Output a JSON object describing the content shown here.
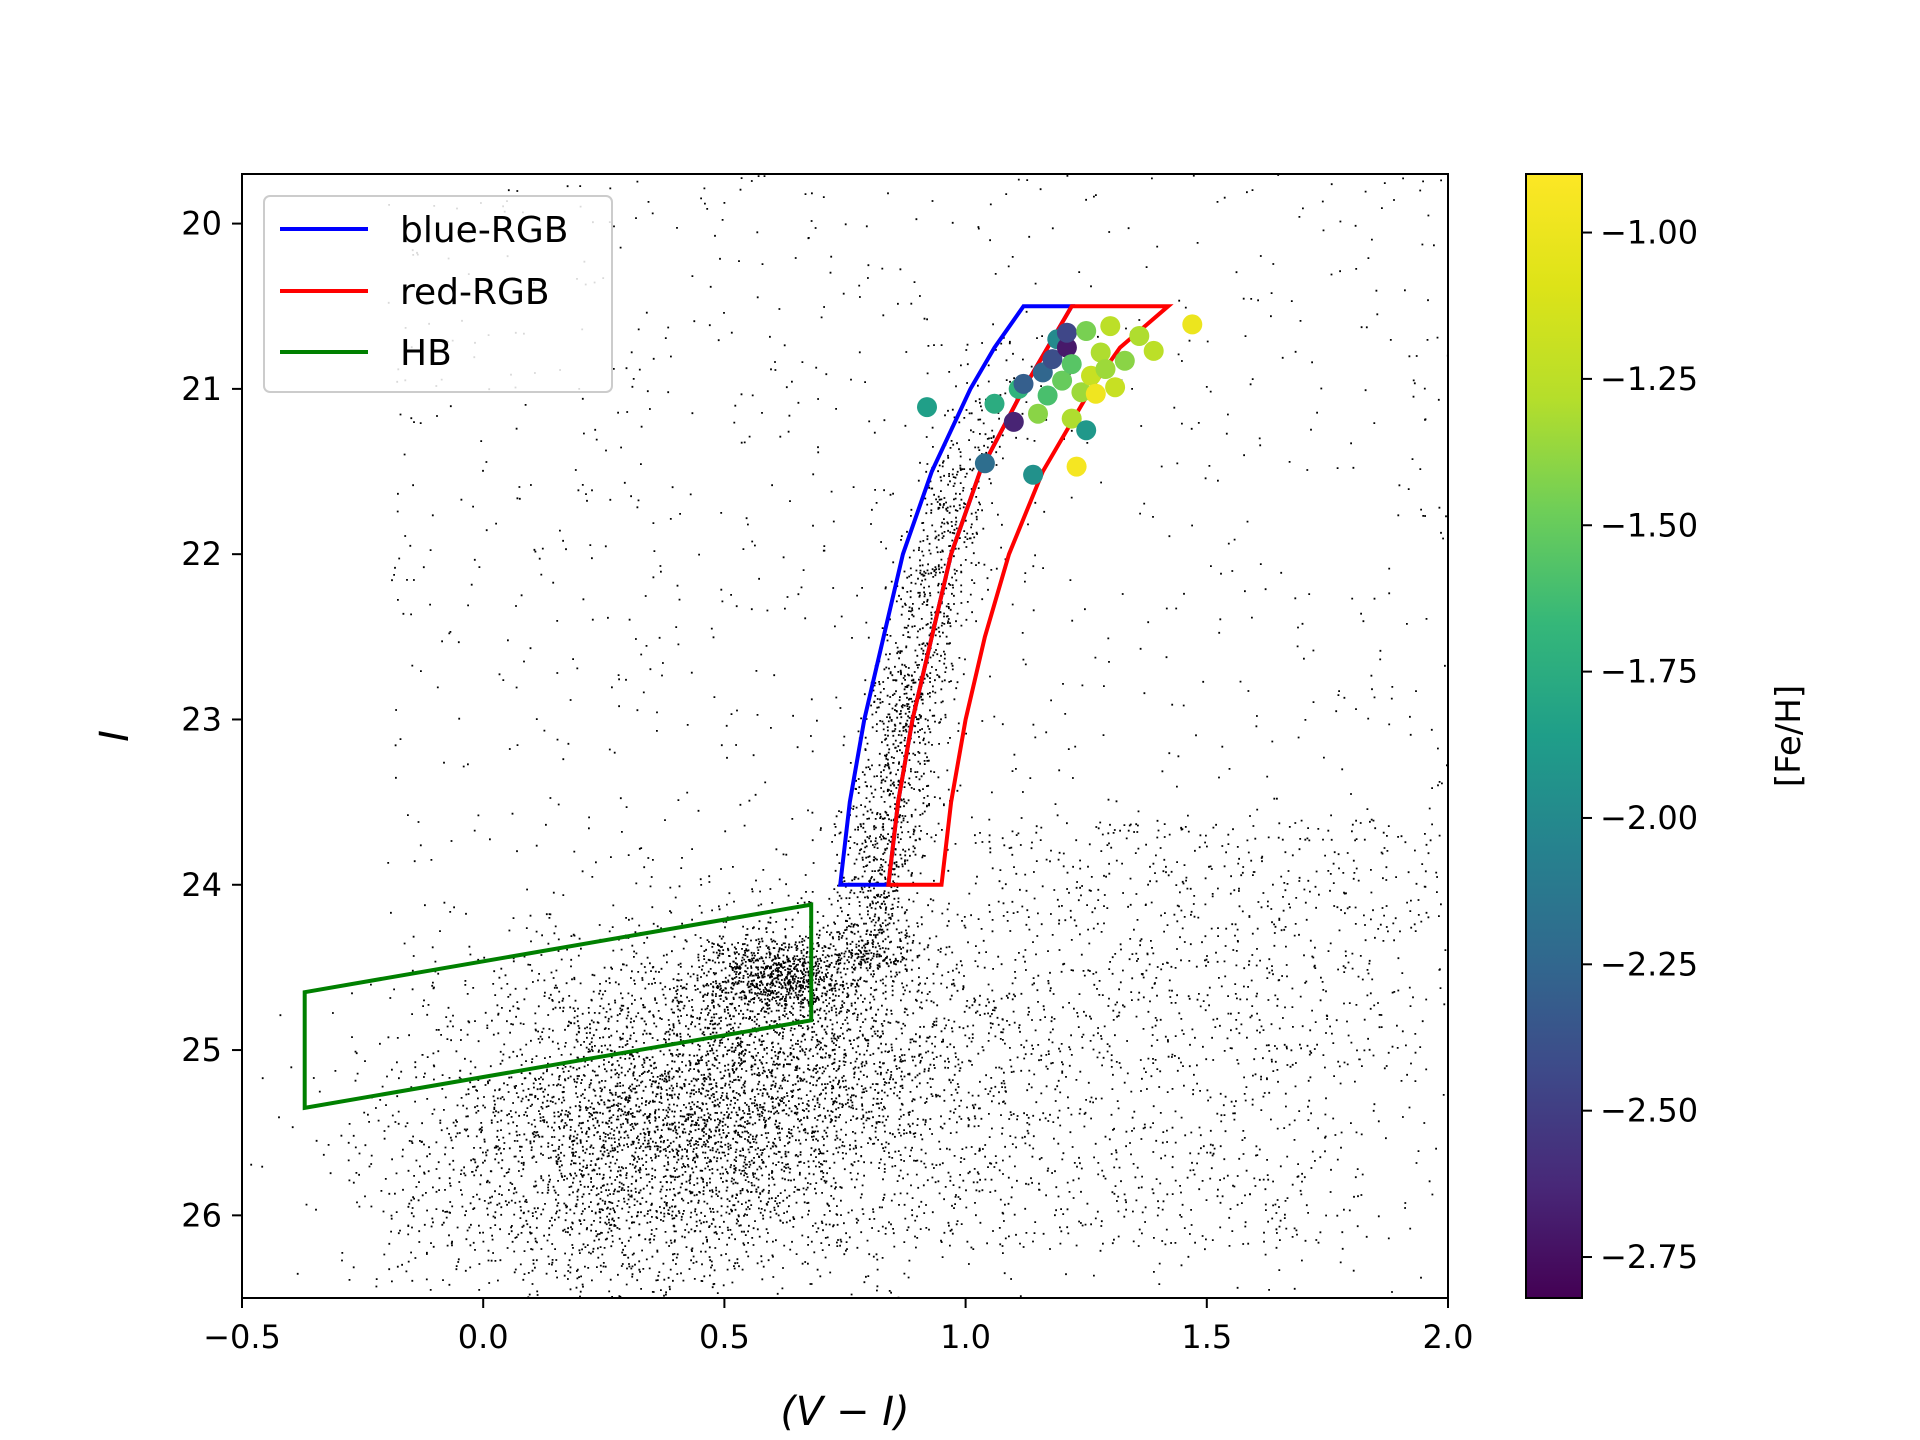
{
  "chart_data": {
    "type": "scatter",
    "title": "",
    "xlabel": "(V − I)",
    "ylabel": "I",
    "xlim": [
      -0.5,
      2.0
    ],
    "ylim": [
      26.5,
      19.7
    ],
    "y_inverted": true,
    "xticks": [
      -0.5,
      0.0,
      0.5,
      1.0,
      1.5,
      2.0
    ],
    "xtick_labels": [
      "−0.5",
      "0.0",
      "0.5",
      "1.0",
      "1.5",
      "2.0"
    ],
    "yticks": [
      20,
      21,
      22,
      23,
      24,
      25,
      26
    ],
    "ytick_labels": [
      "20",
      "21",
      "22",
      "23",
      "24",
      "25",
      "26"
    ],
    "grid": false,
    "legend_position": "top-left",
    "legend": [
      {
        "label": "blue-RGB",
        "color": "#0000ff"
      },
      {
        "label": "red-RGB",
        "color": "#ff0000"
      },
      {
        "label": "HB",
        "color": "#008000"
      }
    ],
    "regions": [
      {
        "name": "blue-RGB",
        "color": "#0000ff",
        "left_edge": [
          [
            0.74,
            24.0
          ],
          [
            0.76,
            23.5
          ],
          [
            0.79,
            23.0
          ],
          [
            0.83,
            22.5
          ],
          [
            0.87,
            22.0
          ],
          [
            0.93,
            21.5
          ],
          [
            1.01,
            21.0
          ],
          [
            1.06,
            20.75
          ],
          [
            1.12,
            20.5
          ]
        ],
        "right_edge": [
          [
            0.84,
            24.0
          ],
          [
            0.86,
            23.5
          ],
          [
            0.89,
            23.0
          ],
          [
            0.93,
            22.5
          ],
          [
            0.97,
            22.0
          ],
          [
            1.03,
            21.5
          ],
          [
            1.12,
            21.0
          ],
          [
            1.17,
            20.75
          ],
          [
            1.22,
            20.5
          ]
        ]
      },
      {
        "name": "red-RGB",
        "color": "#ff0000",
        "left_edge": [
          [
            0.84,
            24.0
          ],
          [
            0.86,
            23.5
          ],
          [
            0.89,
            23.0
          ],
          [
            0.93,
            22.5
          ],
          [
            0.97,
            22.0
          ],
          [
            1.03,
            21.5
          ],
          [
            1.12,
            21.0
          ],
          [
            1.17,
            20.75
          ],
          [
            1.22,
            20.5
          ]
        ],
        "right_edge": [
          [
            0.95,
            24.0
          ],
          [
            0.97,
            23.5
          ],
          [
            1.0,
            23.0
          ],
          [
            1.04,
            22.5
          ],
          [
            1.09,
            22.0
          ],
          [
            1.16,
            21.5
          ],
          [
            1.26,
            21.0
          ],
          [
            1.32,
            20.75
          ],
          [
            1.42,
            20.5
          ]
        ]
      },
      {
        "name": "HB",
        "color": "#008000",
        "polygon": [
          [
            -0.37,
            24.65
          ],
          [
            0.68,
            24.12
          ],
          [
            0.68,
            24.82
          ],
          [
            -0.37,
            25.35
          ]
        ]
      }
    ],
    "metallicity_stars": {
      "value_label": "[Fe/H]",
      "points": [
        {
          "x": 0.92,
          "y": 21.11,
          "feh": -1.85
        },
        {
          "x": 1.04,
          "y": 21.45,
          "feh": -2.2
        },
        {
          "x": 1.06,
          "y": 21.09,
          "feh": -1.75
        },
        {
          "x": 1.1,
          "y": 21.2,
          "feh": -2.65
        },
        {
          "x": 1.11,
          "y": 21.0,
          "feh": -1.7
        },
        {
          "x": 1.12,
          "y": 20.97,
          "feh": -2.3
        },
        {
          "x": 1.14,
          "y": 21.52,
          "feh": -1.95
        },
        {
          "x": 1.15,
          "y": 21.15,
          "feh": -1.4
        },
        {
          "x": 1.16,
          "y": 20.9,
          "feh": -2.25
        },
        {
          "x": 1.17,
          "y": 21.04,
          "feh": -1.6
        },
        {
          "x": 1.18,
          "y": 20.82,
          "feh": -2.4
        },
        {
          "x": 1.19,
          "y": 20.7,
          "feh": -2.0
        },
        {
          "x": 1.2,
          "y": 20.95,
          "feh": -1.5
        },
        {
          "x": 1.21,
          "y": 20.75,
          "feh": -2.7
        },
        {
          "x": 1.21,
          "y": 20.66,
          "feh": -2.45
        },
        {
          "x": 1.22,
          "y": 21.18,
          "feh": -1.3
        },
        {
          "x": 1.22,
          "y": 20.85,
          "feh": -1.55
        },
        {
          "x": 1.23,
          "y": 21.47,
          "feh": -0.95
        },
        {
          "x": 1.24,
          "y": 21.02,
          "feh": -1.35
        },
        {
          "x": 1.25,
          "y": 20.65,
          "feh": -1.45
        },
        {
          "x": 1.25,
          "y": 21.25,
          "feh": -1.9
        },
        {
          "x": 1.26,
          "y": 20.92,
          "feh": -1.2
        },
        {
          "x": 1.27,
          "y": 21.03,
          "feh": -0.98
        },
        {
          "x": 1.28,
          "y": 20.78,
          "feh": -1.3
        },
        {
          "x": 1.29,
          "y": 20.88,
          "feh": -1.35
        },
        {
          "x": 1.3,
          "y": 20.62,
          "feh": -1.25
        },
        {
          "x": 1.31,
          "y": 20.99,
          "feh": -1.2
        },
        {
          "x": 1.33,
          "y": 20.83,
          "feh": -1.4
        },
        {
          "x": 1.36,
          "y": 20.68,
          "feh": -1.3
        },
        {
          "x": 1.39,
          "y": 20.77,
          "feh": -1.25
        },
        {
          "x": 1.47,
          "y": 20.61,
          "feh": -1.0
        }
      ]
    },
    "colorbar": {
      "label": "[Fe/H]",
      "cmap": "viridis",
      "range": [
        -2.82,
        -0.9
      ],
      "ticks": [
        -1.0,
        -1.25,
        -1.5,
        -1.75,
        -2.0,
        -2.25,
        -2.5,
        -2.75
      ],
      "tick_labels": [
        "−1.00",
        "−1.25",
        "−1.50",
        "−1.75",
        "−2.00",
        "−2.25",
        "−2.50",
        "−2.75"
      ]
    },
    "background_stars": {
      "description_only": false,
      "components": [
        {
          "name": "main-sequence-turnoff",
          "cx": 0.45,
          "cy": 25.35,
          "sx": 0.28,
          "sy": 0.55,
          "count": 5200
        },
        {
          "name": "red-clump",
          "cx": 0.62,
          "cy": 24.55,
          "sx": 0.09,
          "sy": 0.12,
          "count": 900
        },
        {
          "name": "rgb-ridge",
          "count": 1500
        },
        {
          "name": "field",
          "count": 1400
        },
        {
          "name": "faint-red-wing",
          "count": 1300
        }
      ]
    }
  }
}
